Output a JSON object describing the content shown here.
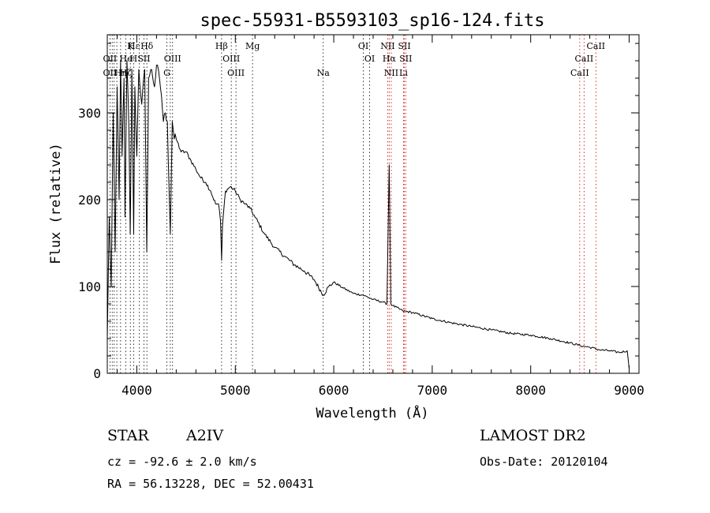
{
  "chart_data": {
    "type": "line",
    "title": "spec-55931-B5593103_sp16-124.fits",
    "xlabel": "Wavelength (Å)",
    "ylabel": "Flux (relative)",
    "xlim": [
      3700,
      9100
    ],
    "ylim": [
      0,
      390
    ],
    "xticks": [
      4000,
      5000,
      6000,
      7000,
      8000,
      9000
    ],
    "yticks": [
      0,
      100,
      200,
      300
    ],
    "grid": false,
    "series": [
      {
        "name": "flux",
        "x": [
          3700,
          3720,
          3740,
          3760,
          3780,
          3800,
          3820,
          3835,
          3850,
          3870,
          3880,
          3900,
          3920,
          3933,
          3950,
          3968,
          3980,
          4000,
          4020,
          4050,
          4080,
          4101,
          4120,
          4150,
          4180,
          4200,
          4230,
          4250,
          4270,
          4290,
          4310,
          4340,
          4360,
          4380,
          4400,
          4450,
          4500,
          4550,
          4600,
          4650,
          4700,
          4750,
          4800,
          4830,
          4850,
          4861,
          4870,
          4900,
          4950,
          5000,
          5050,
          5100,
          5150,
          5200,
          5300,
          5400,
          5500,
          5600,
          5700,
          5800,
          5893,
          5950,
          6000,
          6100,
          6200,
          6300,
          6400,
          6500,
          6540,
          6563,
          6580,
          6600,
          6700,
          6800,
          7000,
          7200,
          7400,
          7600,
          7800,
          8000,
          8200,
          8400,
          8500,
          8600,
          8700,
          8800,
          8900,
          8980,
          9000
        ],
        "y": [
          40,
          180,
          100,
          300,
          140,
          330,
          200,
          360,
          250,
          340,
          180,
          360,
          280,
          160,
          350,
          160,
          330,
          250,
          350,
          310,
          350,
          140,
          340,
          350,
          330,
          355,
          340,
          320,
          290,
          300,
          290,
          160,
          290,
          270,
          270,
          255,
          255,
          245,
          235,
          225,
          220,
          210,
          195,
          195,
          175,
          130,
          170,
          210,
          215,
          210,
          200,
          195,
          190,
          180,
          160,
          145,
          135,
          125,
          118,
          108,
          90,
          100,
          105,
          98,
          92,
          90,
          85,
          82,
          80,
          240,
          80,
          78,
          72,
          70,
          63,
          58,
          54,
          50,
          46,
          44,
          40,
          35,
          32,
          30,
          27,
          26,
          24,
          26,
          5
        ]
      }
    ],
    "line_markers": [
      {
        "label": "Hε",
        "x": 3970,
        "row": 1
      },
      {
        "label": "K",
        "x": 3934,
        "row": 1
      },
      {
        "label": "Hδ",
        "x": 4102,
        "row": 1
      },
      {
        "label": "Hβ",
        "x": 4861,
        "row": 1
      },
      {
        "label": "Mg",
        "x": 5175,
        "row": 1
      },
      {
        "label": "OI",
        "x": 6300,
        "row": 1
      },
      {
        "label": "NII",
        "x": 6548,
        "row": 1
      },
      {
        "label": "SII",
        "x": 6717,
        "row": 1
      },
      {
        "label": "CaII",
        "x": 8662,
        "row": 1
      },
      {
        "label": "OII",
        "x": 3727,
        "row": 2
      },
      {
        "label": "He",
        "x": 3889,
        "row": 2
      },
      {
        "label": "H",
        "x": 3968,
        "row": 2
      },
      {
        "label": "SII",
        "x": 4072,
        "row": 2
      },
      {
        "label": "OIII",
        "x": 4363,
        "row": 2
      },
      {
        "label": "OIII",
        "x": 4959,
        "row": 2
      },
      {
        "label": "OI",
        "x": 6364,
        "row": 2
      },
      {
        "label": "Hα",
        "x": 6563,
        "row": 2
      },
      {
        "label": "SII",
        "x": 6731,
        "row": 2
      },
      {
        "label": "CaII",
        "x": 8542,
        "row": 2
      },
      {
        "label": "OII",
        "x": 3727,
        "row": 3
      },
      {
        "label": "Hη",
        "x": 3835,
        "row": 3
      },
      {
        "label": "Hζ",
        "x": 3889,
        "row": 3
      },
      {
        "label": "G",
        "x": 4305,
        "row": 3
      },
      {
        "label": "OIII",
        "x": 5007,
        "row": 3
      },
      {
        "label": "Na",
        "x": 5893,
        "row": 3
      },
      {
        "label": "NII",
        "x": 6584,
        "row": 3
      },
      {
        "label": "Li",
        "x": 6708,
        "row": 3
      },
      {
        "label": "CaII",
        "x": 8498,
        "row": 3
      }
    ],
    "marker_lines": [
      {
        "x": 3727,
        "color": "#000000"
      },
      {
        "x": 3750,
        "color": "#000000"
      },
      {
        "x": 3770,
        "color": "#000000"
      },
      {
        "x": 3797,
        "color": "#000000"
      },
      {
        "x": 3835,
        "color": "#000000"
      },
      {
        "x": 3889,
        "color": "#000000"
      },
      {
        "x": 3934,
        "color": "#000000"
      },
      {
        "x": 3968,
        "color": "#000000"
      },
      {
        "x": 4026,
        "color": "#000000"
      },
      {
        "x": 4072,
        "color": "#000000"
      },
      {
        "x": 4102,
        "color": "#000000"
      },
      {
        "x": 4305,
        "color": "#000000"
      },
      {
        "x": 4340,
        "color": "#000000"
      },
      {
        "x": 4363,
        "color": "#000000"
      },
      {
        "x": 4861,
        "color": "#000000"
      },
      {
        "x": 4959,
        "color": "#000000"
      },
      {
        "x": 5007,
        "color": "#000000"
      },
      {
        "x": 5175,
        "color": "#000000"
      },
      {
        "x": 5893,
        "color": "#000000"
      },
      {
        "x": 6300,
        "color": "#000000"
      },
      {
        "x": 6364,
        "color": "#000000"
      },
      {
        "x": 6548,
        "color": "#cc0000"
      },
      {
        "x": 6563,
        "color": "#cc0000"
      },
      {
        "x": 6584,
        "color": "#cc0000"
      },
      {
        "x": 6708,
        "color": "#cc0000"
      },
      {
        "x": 6717,
        "color": "#cc0000"
      },
      {
        "x": 6731,
        "color": "#cc0000"
      },
      {
        "x": 8498,
        "color": "#cc0000"
      },
      {
        "x": 8542,
        "color": "#cc0000"
      },
      {
        "x": 8662,
        "color": "#cc0000"
      }
    ]
  },
  "info": {
    "object_class": "STAR",
    "subclass": "A2IV",
    "survey": "LAMOST DR2",
    "cz_line": "cz = -92.6 ± 2.0 km/s",
    "obs_date_line": "Obs-Date: 20120104",
    "coords_line": "RA =  56.13228, DEC =  52.00431"
  }
}
